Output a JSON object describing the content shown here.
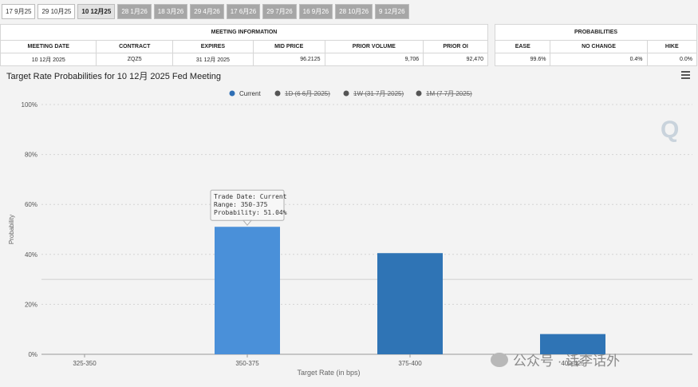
{
  "tabs": [
    {
      "label": "17 9月25",
      "state": "plain"
    },
    {
      "label": "29 10月25",
      "state": "plain"
    },
    {
      "label": "10 12月25",
      "state": "active"
    },
    {
      "label": "28 1月26",
      "state": "gray"
    },
    {
      "label": "18 3月26",
      "state": "gray"
    },
    {
      "label": "29 4月26",
      "state": "gray"
    },
    {
      "label": "17 6月26",
      "state": "gray"
    },
    {
      "label": "29 7月26",
      "state": "gray"
    },
    {
      "label": "16 9月26",
      "state": "gray"
    },
    {
      "label": "28 10月26",
      "state": "gray"
    },
    {
      "label": "9 12月26",
      "state": "gray"
    }
  ],
  "meeting_info": {
    "caption": "MEETING INFORMATION",
    "headers": [
      "MEETING DATE",
      "CONTRACT",
      "EXPIRES",
      "MID PRICE",
      "PRIOR VOLUME",
      "PRIOR OI"
    ],
    "values": [
      "10 12月 2025",
      "ZQZ5",
      "31 12月 2025",
      "96.2125",
      "9,706",
      "92,470"
    ]
  },
  "probabilities": {
    "caption": "PROBABILITIES",
    "headers": [
      "EASE",
      "NO CHANGE",
      "HIKE"
    ],
    "values": [
      "99.6%",
      "0.4%",
      "0.0%"
    ]
  },
  "chart_title": "Target Rate Probabilities for 10 12月 2025 Fed Meeting",
  "chart_data": {
    "type": "bar",
    "categories": [
      "325-350",
      "350-375",
      "375-400",
      "400-425"
    ],
    "series": [
      {
        "name": "Current",
        "values": [
          0,
          51.04,
          40.5,
          8.1
        ],
        "color": "#4a90d9"
      }
    ],
    "legend": [
      {
        "label": "Current",
        "color": "#2f6fb5",
        "struck": false
      },
      {
        "label": "1D (6 6月 2025)",
        "color": "#555555",
        "struck": true
      },
      {
        "label": "1W (31 7月 2025)",
        "color": "#555555",
        "struck": true
      },
      {
        "label": "1M (7 7月 2025)",
        "color": "#555555",
        "struck": true
      }
    ],
    "legend_position": "top-center",
    "xlabel": "Target Rate (in bps)",
    "ylabel": "Probability",
    "ylim": [
      0,
      100
    ],
    "yticks": [
      "0%",
      "20%",
      "40%",
      "60%",
      "80%",
      "100%"
    ],
    "grid": true,
    "tooltip": {
      "category": "350-375",
      "lines": [
        "Trade Date: Current",
        "Range: 350-375",
        "Probability: 51.04%"
      ]
    }
  },
  "watermark": {
    "brand_letter": "Q",
    "wechat_text": "公众号 · 话李话外"
  }
}
